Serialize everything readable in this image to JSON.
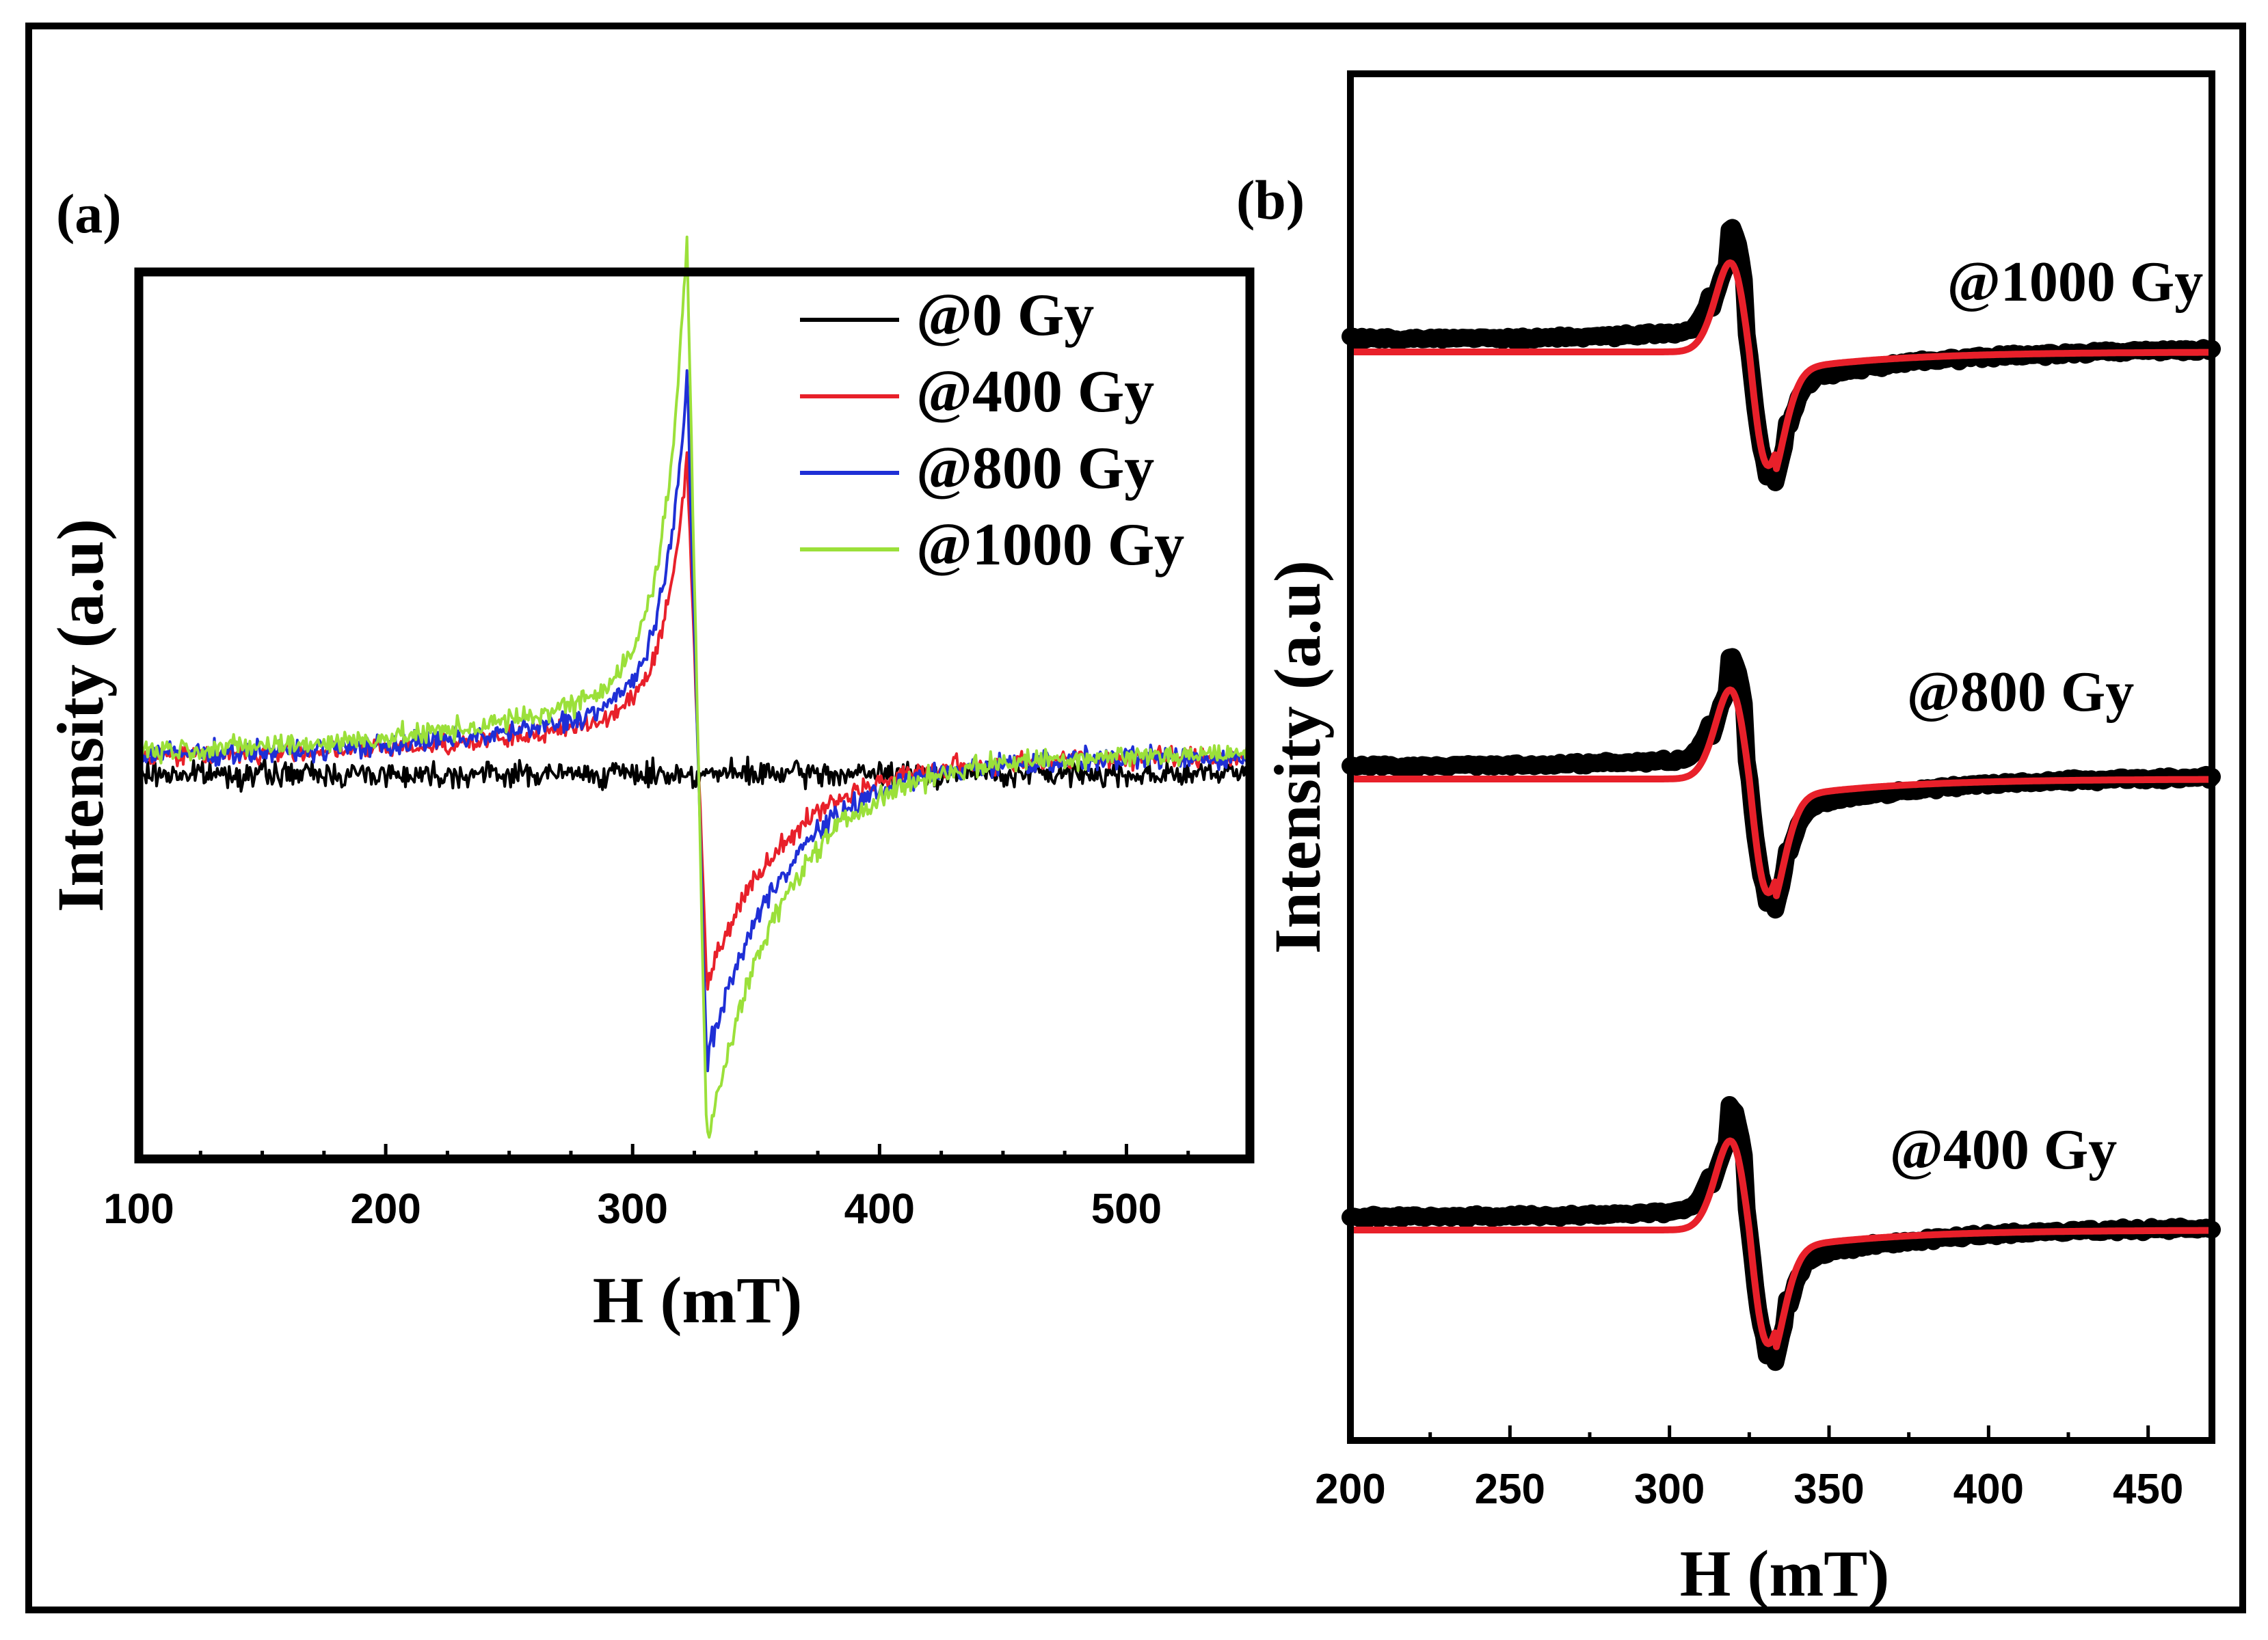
{
  "chart_data": [
    {
      "type": "line",
      "panel_label": "(a)",
      "xlabel": "H (mT)",
      "ylabel": "Intensity (a.u)",
      "xlim": [
        100,
        550
      ],
      "ylim": [
        -1.15,
        1.5
      ],
      "xticks": [
        100,
        200,
        300,
        400,
        500
      ],
      "y_tick_labels": false,
      "grid": false,
      "legend_position": "top-right",
      "series": [
        {
          "name": "@0 Gy",
          "color": "#000000",
          "baseline": 0.0,
          "peak_x": 322,
          "peak": 0.0,
          "trough_x": 330,
          "trough": 0.0
        },
        {
          "name": "@400 Gy",
          "color": "#e8202a",
          "baseline": 0.05,
          "peak_x": 322,
          "peak": 0.95,
          "trough_x": 330,
          "trough": -0.62
        },
        {
          "name": "@800 Gy",
          "color": "#1f2fd6",
          "baseline": 0.05,
          "peak_x": 322,
          "peak": 1.2,
          "trough_x": 330,
          "trough": -0.86
        },
        {
          "name": "@1000 Gy",
          "color": "#9be03a",
          "baseline": 0.06,
          "peak_x": 322,
          "peak": 1.6,
          "trough_x": 330,
          "trough": -1.1
        }
      ]
    },
    {
      "type": "line",
      "panel_label": "(b)",
      "xlabel": "H (mT)",
      "ylabel": "Intensity (a.u)",
      "xlim": [
        200,
        470
      ],
      "xticks": [
        200,
        250,
        300,
        350,
        400,
        450
      ],
      "y_tick_labels": false,
      "grid": false,
      "series": [
        {
          "name": "@1000 Gy",
          "data_color": "#000000",
          "fit_color": "#e8202a",
          "center": 325,
          "peak_x": 321,
          "trough_x": 333
        },
        {
          "name": "@800 Gy",
          "data_color": "#000000",
          "fit_color": "#e8202a",
          "center": 325,
          "peak_x": 321,
          "trough_x": 333
        },
        {
          "name": "@400 Gy",
          "data_color": "#000000",
          "fit_color": "#e8202a",
          "center": 325,
          "peak_x": 321,
          "trough_x": 333
        }
      ]
    }
  ]
}
